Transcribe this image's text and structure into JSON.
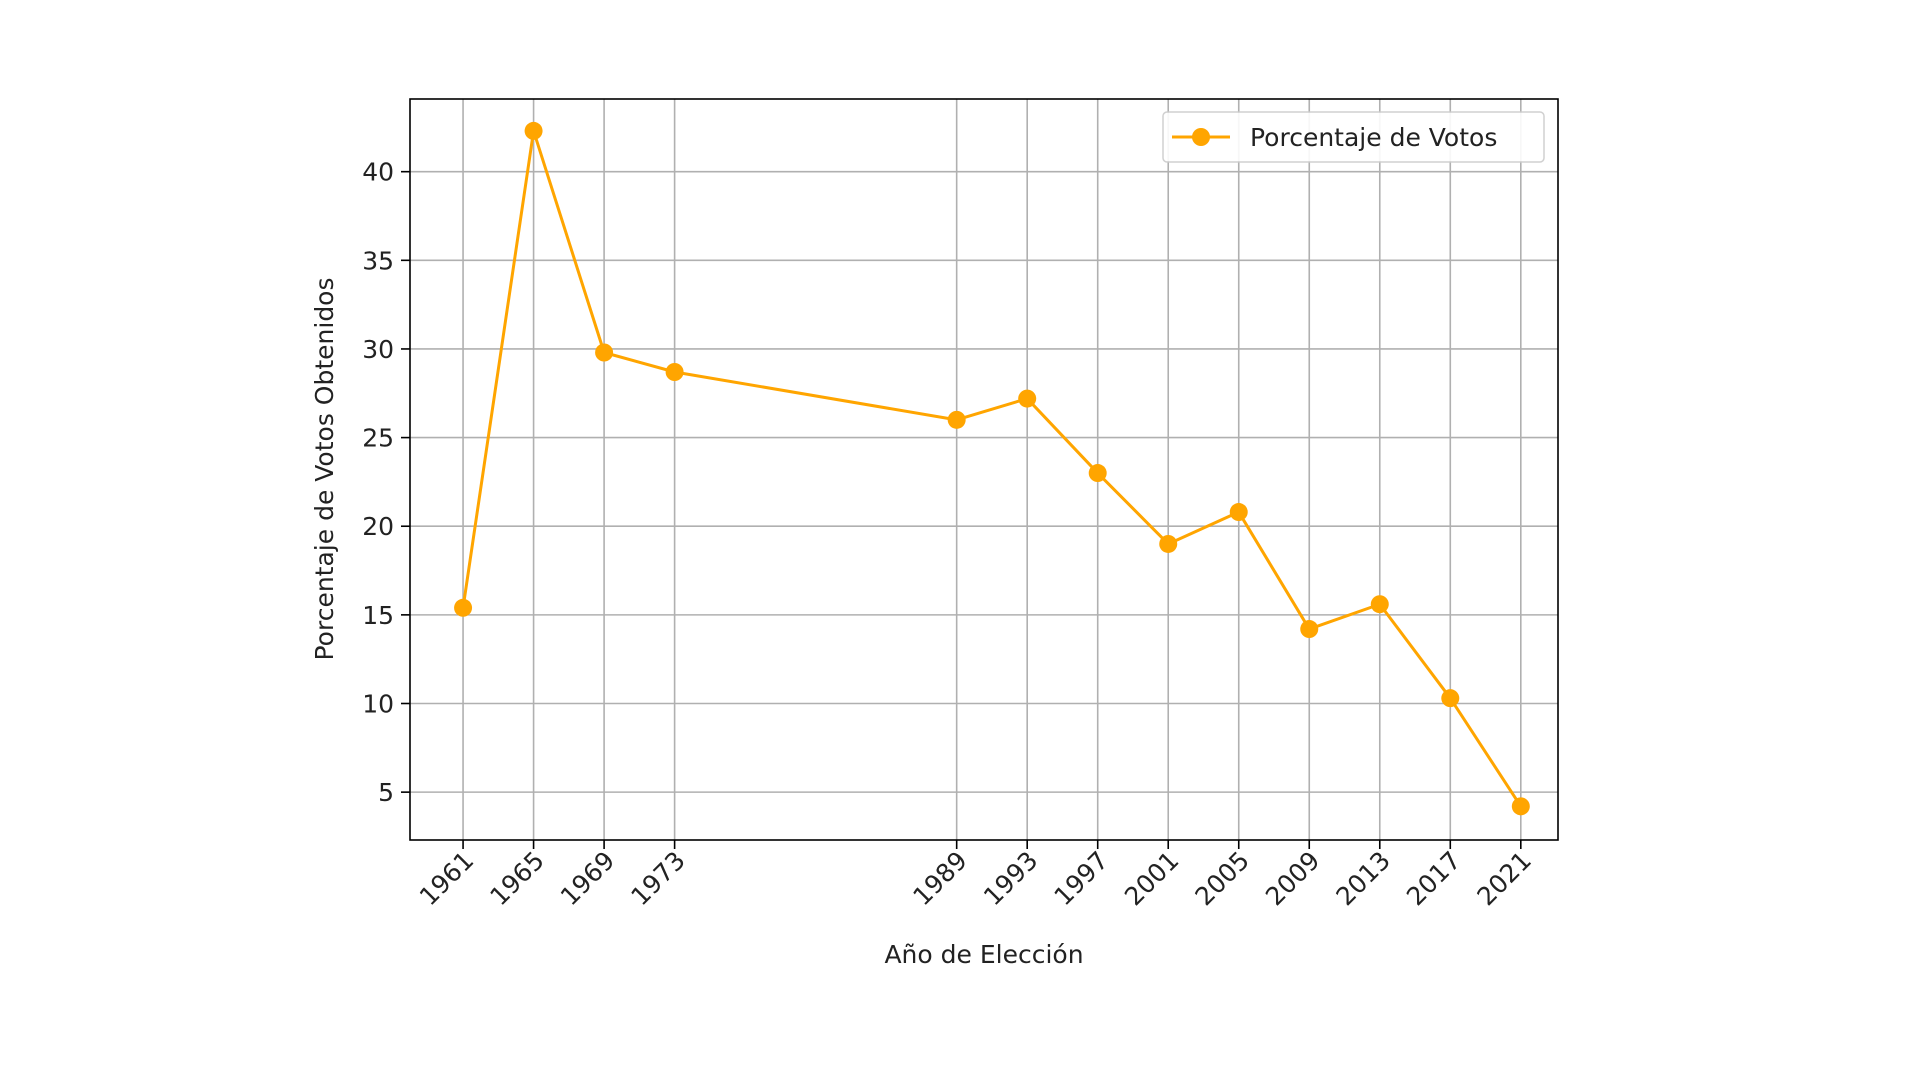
{
  "chart_data": {
    "type": "line",
    "title": "",
    "xlabel": "Año de Elección",
    "ylabel": "Porcentaje de Votos Obtenidos",
    "x": [
      1961,
      1965,
      1969,
      1973,
      1989,
      1993,
      1997,
      2001,
      2005,
      2009,
      2013,
      2017,
      2021
    ],
    "x_tick_labels": [
      "1961",
      "1965",
      "1969",
      "1973",
      "1989",
      "1993",
      "1997",
      "2001",
      "2005",
      "2009",
      "2013",
      "2017",
      "2021"
    ],
    "y_ticks": [
      5,
      10,
      15,
      20,
      25,
      30,
      35,
      40
    ],
    "y_tick_labels": [
      "5",
      "10",
      "15",
      "20",
      "25",
      "30",
      "35",
      "40"
    ],
    "xlim": [
      1957.99,
      2023.11
    ],
    "ylim": [
      2.3,
      44.1
    ],
    "grid": true,
    "legend_position": "top-right",
    "series": [
      {
        "name": "Porcentaje de Votos",
        "color": "#FFA500",
        "marker": "circle",
        "values": [
          15.4,
          42.3,
          29.8,
          28.7,
          26.0,
          27.2,
          23.0,
          19.0,
          20.8,
          14.2,
          15.6,
          10.3,
          4.2
        ]
      }
    ]
  }
}
